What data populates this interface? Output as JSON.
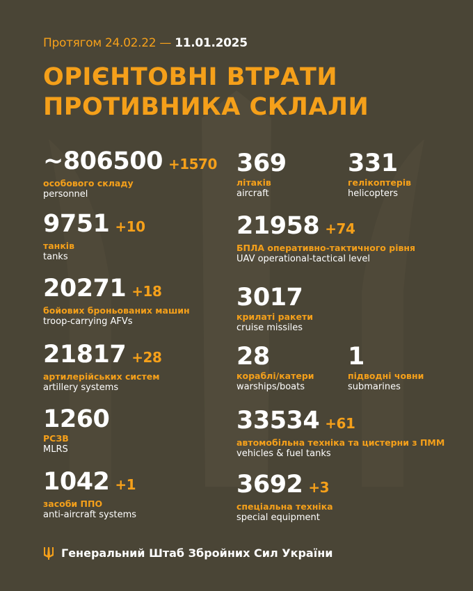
{
  "header": {
    "date_prefix": "Протягом 24.02.22 — ",
    "date_end": "11.01.2025",
    "title_line1": "ОРІЄНТОВНІ ВТРАТИ",
    "title_line2": "ПРОТИВНИКА СКЛАЛИ"
  },
  "items": [
    {
      "value": "~806500",
      "delta": "+1570",
      "ua": "особового складу",
      "en": "personnel"
    },
    {
      "value": "9751",
      "delta": "+10",
      "ua": "танків",
      "en": "tanks"
    },
    {
      "value": "20271",
      "delta": "+18",
      "ua": "бойових броньованих машин",
      "en": "troop-carrying AFVs"
    },
    {
      "value": "21817",
      "delta": "+28",
      "ua": "артилерійських систем",
      "en": "artillery systems"
    },
    {
      "value": "1260",
      "delta": "",
      "ua": "РСЗВ",
      "en": "MLRS"
    },
    {
      "value": "1042",
      "delta": "+1",
      "ua": "засоби ППО",
      "en": "anti-aircraft systems"
    },
    {
      "value": "369",
      "delta": "",
      "ua": "літаків",
      "en": "aircraft"
    },
    {
      "value": "331",
      "delta": "",
      "ua": "гелікоптерів",
      "en": "helicopters"
    },
    {
      "value": "21958",
      "delta": "+74",
      "ua": "БПЛА оперативно-тактичного рівня",
      "en": "UAV operational-tactical level"
    },
    {
      "value": "3017",
      "delta": "",
      "ua": "крилаті ракети",
      "en": "cruise missiles"
    },
    {
      "value": "28",
      "delta": "",
      "ua": "кораблі/катери",
      "en": "warships/boats"
    },
    {
      "value": "1",
      "delta": "",
      "ua": "підводні човни",
      "en": "submarines"
    },
    {
      "value": "33534",
      "delta": "+61",
      "ua": "автомобільна техніка та цистерни з ПММ",
      "en": "vehicles & fuel tanks"
    },
    {
      "value": "3692",
      "delta": "+3",
      "ua": "спеціальна техніка",
      "en": "special equipment"
    }
  ],
  "footer": {
    "text": "Генеральний Штаб Збройних Сил України",
    "icon": "trident-icon"
  },
  "colors": {
    "background": "#4a4536",
    "accent": "#f5a01a",
    "text": "#ffffff"
  }
}
